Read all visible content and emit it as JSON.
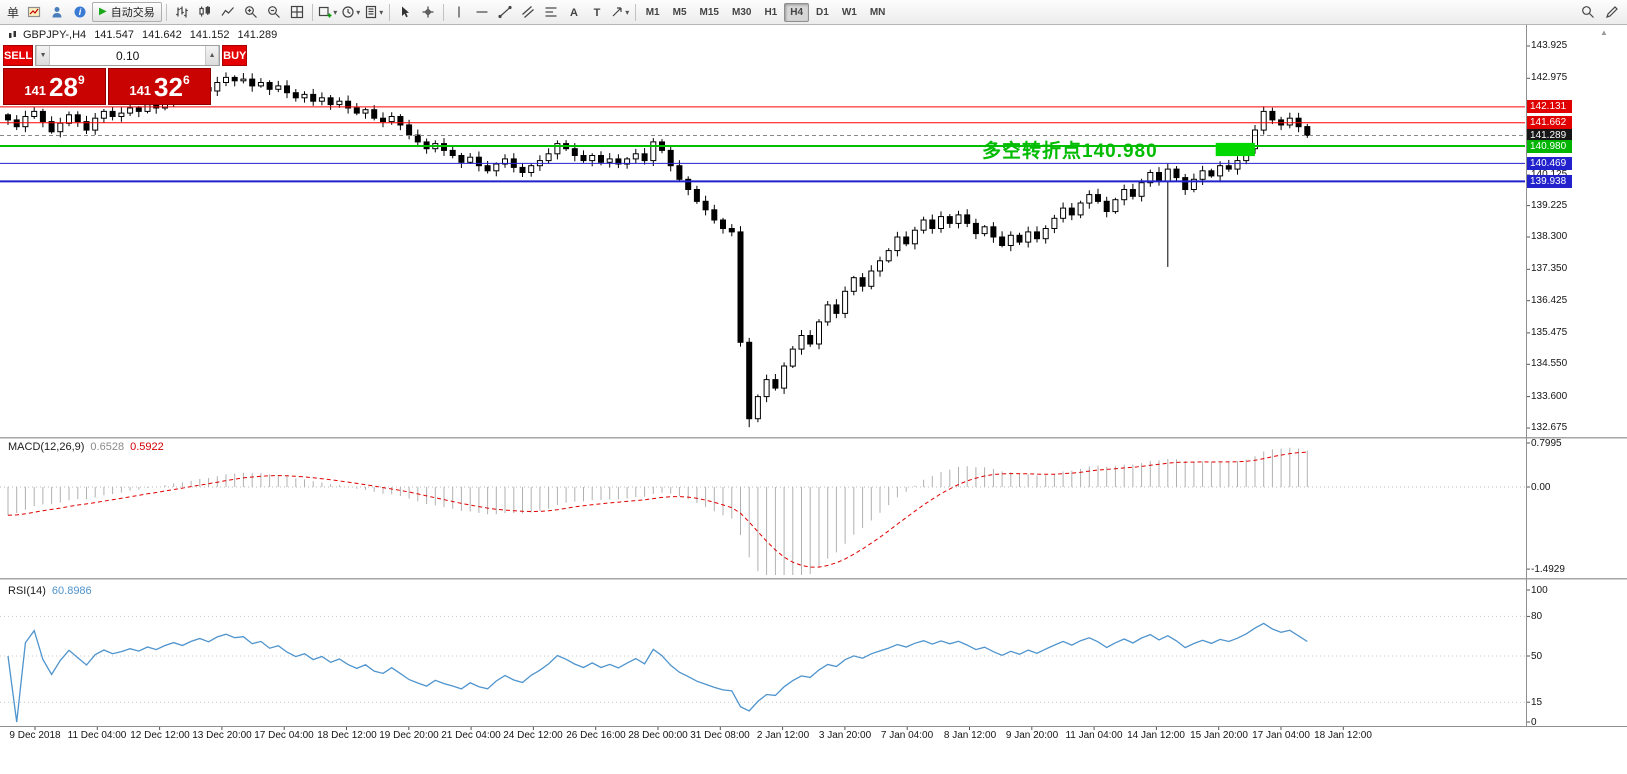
{
  "glyphs": {
    "dropdown": "▾",
    "spinner_up": "▲",
    "spinner_down": "▼",
    "play": "▶",
    "scroll_top": "▲"
  },
  "toolbar": {
    "partial_label": "单",
    "auto_trading_label": "自动交易",
    "timeframes": [
      "M1",
      "M5",
      "M15",
      "M30",
      "H1",
      "H4",
      "D1",
      "W1",
      "MN"
    ],
    "active_timeframe": "H4"
  },
  "one_click": {
    "sell_label": "SELL",
    "buy_label": "BUY",
    "lot": "0.10",
    "sell_price": {
      "base": "141",
      "big": "28",
      "sup": "9"
    },
    "buy_price": {
      "base": "141",
      "big": "32",
      "sup": "6"
    }
  },
  "symbol_header": {
    "symbol": "GBPJPY-,H4",
    "open": "141.547",
    "high": "141.642",
    "low": "141.152",
    "close": "141.289"
  },
  "annotation": {
    "text": "多空转折点140.980",
    "color": "#00bb00"
  },
  "indicators": {
    "macd": {
      "label": "MACD(12,26,9)",
      "value_main": "0.6528",
      "value_signal": "0.5922"
    },
    "rsi": {
      "label": "RSI(14)",
      "value": "60.8986"
    }
  },
  "price_axis": {
    "plain_labels": [
      "143.925",
      "142.975",
      "140.125",
      "139.225",
      "138.300",
      "137.350",
      "136.425",
      "135.475",
      "134.550",
      "133.600",
      "132.675"
    ],
    "tags": [
      {
        "text": "142.131",
        "price": 142.131,
        "bg": "#e00000"
      },
      {
        "text": "141.662",
        "price": 141.662,
        "bg": "#e00000"
      },
      {
        "text": "141.289",
        "price": 141.289,
        "bg": "#151515"
      },
      {
        "text": "140.980",
        "price": 140.98,
        "bg": "#00b400"
      },
      {
        "text": "140.469",
        "price": 140.469,
        "bg": "#2222cc"
      },
      {
        "text": "139.938",
        "price": 139.938,
        "bg": "#2222cc"
      }
    ]
  },
  "macd_axis": [
    {
      "label": "0.7995",
      "value": 0.7995
    },
    {
      "label": "0.00",
      "value": 0
    },
    {
      "label": "-1.4929",
      "value": -1.4929
    }
  ],
  "rsi_axis": [
    {
      "label": "100",
      "value": 100
    },
    {
      "label": "80",
      "value": 80
    },
    {
      "label": "50",
      "value": 50
    },
    {
      "label": "15",
      "value": 15
    },
    {
      "label": "0",
      "value": 0
    }
  ],
  "time_axis": [
    "9 Dec 2018",
    "11 Dec 04:00",
    "12 Dec 12:00",
    "13 Dec 20:00",
    "17 Dec 04:00",
    "18 Dec 12:00",
    "19 Dec 20:00",
    "21 Dec 04:00",
    "24 Dec 12:00",
    "26 Dec 16:00",
    "28 Dec 00:00",
    "31 Dec 08:00",
    "2 Jan 12:00",
    "3 Jan 20:00",
    "7 Jan 04:00",
    "8 Jan 12:00",
    "9 Jan 20:00",
    "11 Jan 04:00",
    "14 Jan 12:00",
    "15 Jan 20:00",
    "17 Jan 04:00",
    "18 Jan 12:00"
  ],
  "chart_data": {
    "type": "candlestick",
    "symbol": "GBPJPY",
    "timeframe": "H4",
    "title": "GBPJPY-,H4",
    "ylim": [
      132.675,
      143.925
    ],
    "current_price": 141.289,
    "candles": {
      "first_open": 141.9,
      "closes": [
        141.75,
        141.55,
        141.85,
        142.0,
        141.7,
        141.4,
        141.65,
        141.9,
        141.7,
        141.45,
        141.8,
        142.0,
        141.85,
        141.95,
        142.1,
        142.0,
        142.2,
        142.1,
        142.3,
        142.45,
        142.35,
        142.55,
        142.7,
        142.6,
        142.85,
        143.0,
        142.9,
        142.95,
        142.75,
        142.85,
        142.65,
        142.75,
        142.55,
        142.4,
        142.5,
        142.3,
        142.4,
        142.2,
        142.3,
        142.1,
        141.95,
        142.05,
        141.8,
        141.7,
        141.85,
        141.6,
        141.3,
        141.1,
        140.9,
        141.05,
        140.85,
        140.7,
        140.5,
        140.65,
        140.4,
        140.25,
        140.45,
        140.6,
        140.35,
        140.2,
        140.4,
        140.55,
        140.75,
        141.05,
        140.9,
        140.7,
        140.55,
        140.7,
        140.5,
        140.6,
        140.45,
        140.6,
        140.75,
        140.55,
        141.1,
        140.85,
        140.4,
        140.0,
        139.7,
        139.35,
        139.1,
        138.8,
        138.55,
        138.45,
        135.2,
        132.95,
        133.6,
        134.1,
        133.85,
        134.5,
        135.0,
        135.4,
        135.15,
        135.8,
        136.3,
        136.05,
        136.7,
        137.1,
        136.85,
        137.3,
        137.6,
        137.9,
        138.3,
        138.1,
        138.5,
        138.8,
        138.55,
        138.9,
        138.7,
        138.95,
        138.7,
        138.4,
        138.6,
        138.3,
        138.05,
        138.35,
        138.15,
        138.45,
        138.25,
        138.55,
        138.85,
        139.15,
        138.95,
        139.3,
        139.55,
        139.35,
        139.05,
        139.4,
        139.7,
        139.5,
        139.9,
        140.2,
        139.95,
        140.3,
        140.05,
        139.7,
        140.0,
        140.25,
        140.1,
        140.4,
        140.3,
        140.55,
        140.9,
        141.45,
        142.0,
        141.75,
        141.6,
        141.8,
        141.55,
        141.29
      ],
      "overrides": {
        "27": {
          "high": 143.13
        },
        "85": {
          "low": 132.7
        },
        "133": {
          "low": 137.42
        },
        "144": {
          "high": 142.15
        }
      }
    },
    "hlines": [
      {
        "price": 142.131,
        "color": "#ff0000",
        "width": 1
      },
      {
        "price": 141.662,
        "color": "#ff0000",
        "width": 1
      },
      {
        "price": 140.98,
        "color": "#00c000",
        "width": 2
      },
      {
        "price": 140.469,
        "color": "#2222cc",
        "width": 1
      },
      {
        "price": 139.938,
        "color": "#2222cc",
        "width": 2
      }
    ],
    "objects": {
      "green_box": {
        "from_index": 138.5,
        "to_index": 143,
        "price_top": 141.07,
        "price_bottom": 140.68,
        "color": "#00d800"
      }
    },
    "macd": {
      "fast": 12,
      "slow": 26,
      "signal": 9,
      "seed_offset_fast": -0.28,
      "seed_offset_slow": 0.3,
      "shown_values": [
        0.6528,
        0.5922
      ],
      "yrange": [
        -1.4929,
        0.7995
      ]
    },
    "rsi": {
      "period": 14,
      "shown_value": 60.8986,
      "levels": [
        80,
        50,
        15
      ],
      "yrange": [
        0,
        100
      ]
    }
  }
}
